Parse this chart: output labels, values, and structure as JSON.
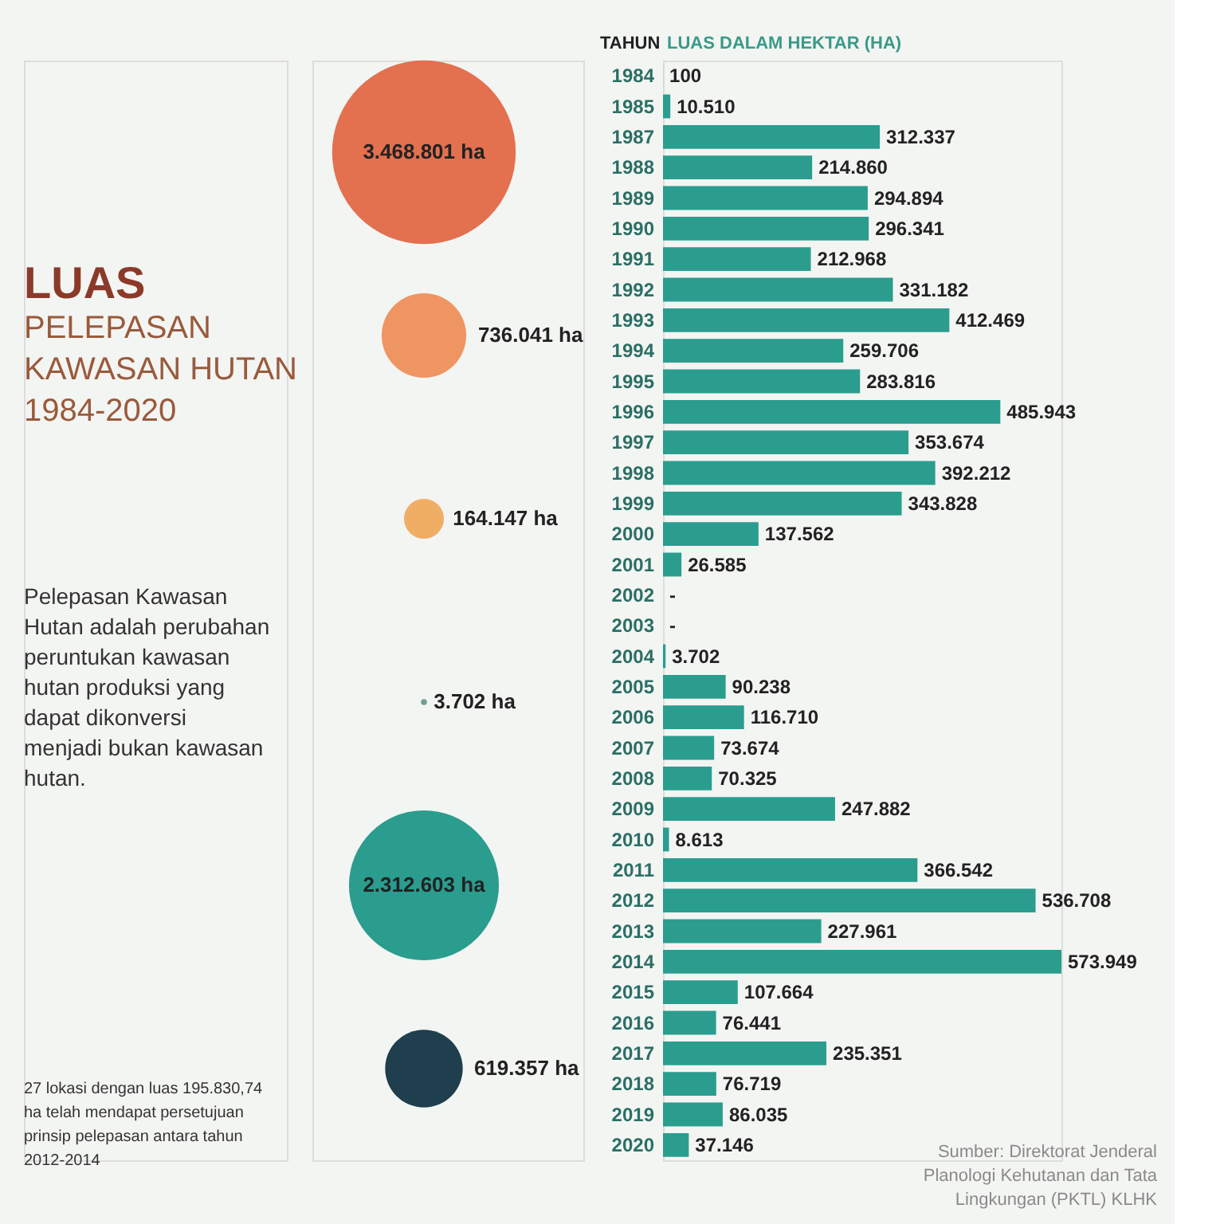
{
  "chart_data": [
    {
      "type": "other",
      "title": "LUAS",
      "subtitle": "PELEPASAN KAWASAN HUTAN 1984-2020",
      "categories": [
        null,
        null,
        null,
        null,
        null,
        null
      ],
      "values": [
        3468801,
        736041,
        164147,
        3702,
        2312603,
        619357
      ],
      "value_labels": [
        "3.468.801 ha",
        "736.041 ha",
        "164.147 ha",
        "3.702 ha",
        "2.312.603 ha",
        "619.357 ha"
      ],
      "colors": [
        "#e3704f",
        "#ef9562",
        "#f0ae65",
        "#6f9e92",
        "#2a9d8f",
        "#1f3e4e"
      ],
      "annotations": [
        "Pelepasan Kawasan Hutan adalah perubahan peruntukan kawasan hutan produksi yang dapat dikonversi menjadi bukan kawasan hutan.",
        "27 lokasi dengan luas 195.830,74 ha telah mendapat persetujuan prinsip pelepasan antara tahun 2012-2014"
      ]
    },
    {
      "type": "bar",
      "orientation": "horizontal",
      "xlabel": "LUAS DALAM HEKTAR (HA)",
      "ylabel": "TAHUN",
      "color": "#2a9d8f",
      "categories": [
        "1984",
        "1985",
        "1987",
        "1988",
        "1989",
        "1990",
        "1991",
        "1992",
        "1993",
        "1994",
        "1995",
        "1996",
        "1997",
        "1998",
        "1999",
        "2000",
        "2001",
        "2002",
        "2003",
        "2004",
        "2005",
        "2006",
        "2007",
        "2008",
        "2009",
        "2010",
        "2011",
        "2012",
        "2013",
        "2014",
        "2015",
        "2016",
        "2017",
        "2018",
        "2019",
        "2020"
      ],
      "values": [
        100,
        10510,
        312337,
        214860,
        294894,
        296341,
        212968,
        331182,
        412469,
        259706,
        283816,
        485943,
        353674,
        392212,
        343828,
        137562,
        26585,
        null,
        null,
        3702,
        90238,
        116710,
        73674,
        70325,
        247882,
        8613,
        366542,
        536708,
        227961,
        573949,
        107664,
        76441,
        235351,
        76719,
        86035,
        37146
      ],
      "value_labels": [
        "100",
        "10.510",
        "312.337",
        "214.860",
        "294.894",
        "296.341",
        "212.968",
        "331.182",
        "412.469",
        "259.706",
        "283.816",
        "485.943",
        "353.674",
        "392.212",
        "343.828",
        "137.562",
        "26.585",
        "-",
        "-",
        "3.702",
        "90.238",
        "116.710",
        "73.674",
        "70.325",
        "247.882",
        "8.613",
        "366.542",
        "536.708",
        "227.961",
        "573.949",
        "107.664",
        "76.441",
        "235.351",
        "76.719",
        "86.035",
        "37.146"
      ],
      "annotations": [
        "Sumber: Direktorat Jenderal Planologi Kehutanan dan Tata Lingkungan (PKTL) KLHK"
      ]
    }
  ]
}
